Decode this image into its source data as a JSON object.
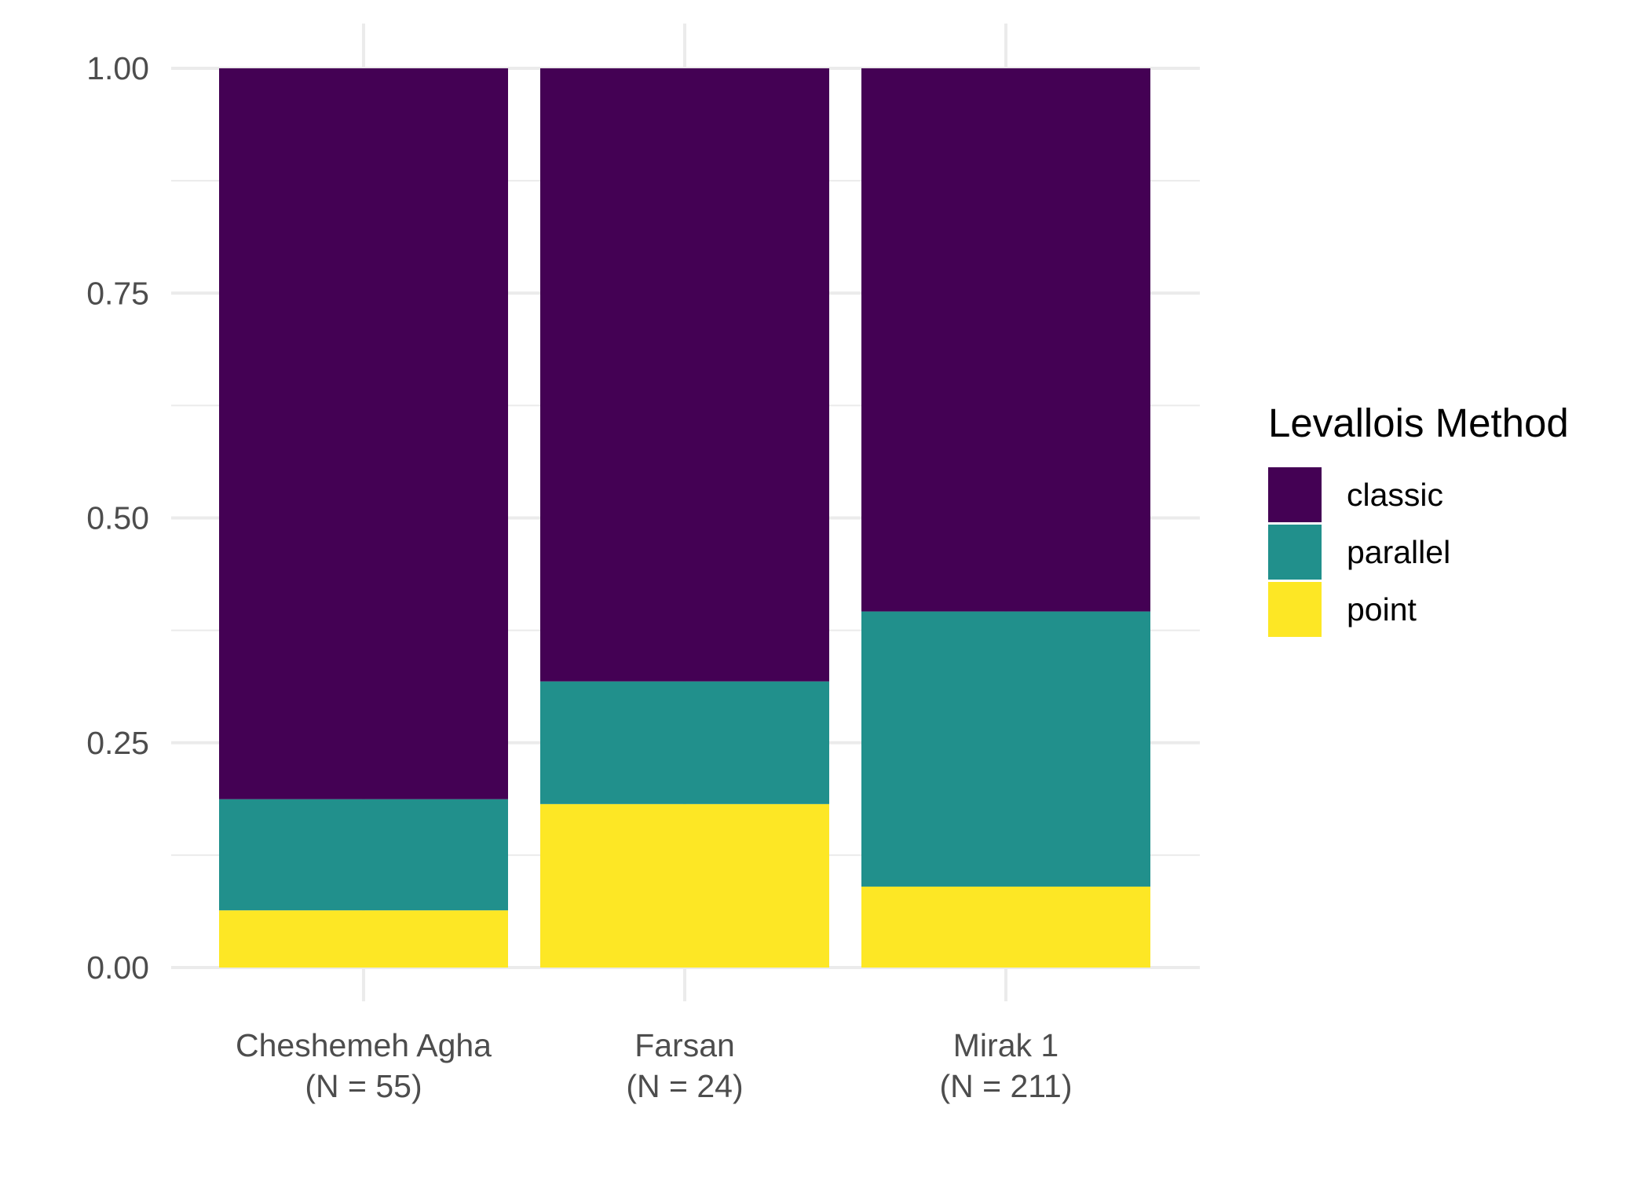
{
  "chart_data": {
    "type": "bar",
    "stacked": true,
    "position": "fill",
    "categories": [
      [
        "Cheshemeh Agha",
        "(N = 55)"
      ],
      [
        "Farsan",
        "(N = 24)"
      ],
      [
        "Mirak 1",
        "(N = 211)"
      ]
    ],
    "series": [
      {
        "name": "point",
        "color": "#FDE725",
        "values": [
          0.0636,
          0.1818,
          0.09
        ]
      },
      {
        "name": "parallel",
        "color": "#21908C",
        "values": [
          0.1236,
          0.1364,
          0.306
        ]
      },
      {
        "name": "classic",
        "color": "#440154",
        "values": [
          0.8128,
          0.6818,
          0.604
        ]
      }
    ],
    "ylim": [
      0,
      1
    ],
    "yticks": [
      "0.00",
      "0.25",
      "0.50",
      "0.75",
      "1.00"
    ],
    "xlabel": "",
    "ylabel": "",
    "grid": true,
    "legend": {
      "title": "Levallois Method",
      "placement": "right",
      "entries": [
        "classic",
        "parallel",
        "point"
      ]
    }
  }
}
